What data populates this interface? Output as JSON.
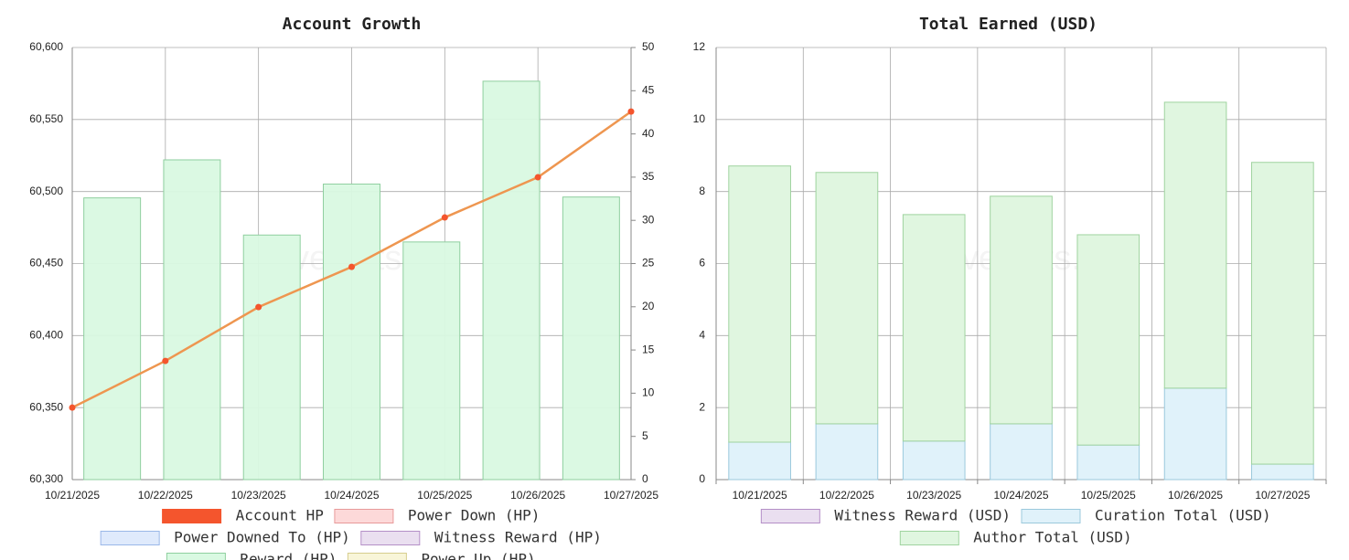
{
  "chart_data": [
    {
      "type": "combo",
      "title": "Account Growth",
      "watermark": "hivestats.io",
      "categories": [
        "10/21/2025",
        "10/22/2025",
        "10/23/2025",
        "10/24/2025",
        "10/25/2025",
        "10/26/2025",
        "10/27/2025"
      ],
      "ylim": [
        60300,
        60600
      ],
      "yticks": [
        {
          "value": 60300,
          "label": "60,300"
        },
        {
          "value": 60350,
          "label": "60,350"
        },
        {
          "value": 60400,
          "label": "60,400"
        },
        {
          "value": 60450,
          "label": "60,450"
        },
        {
          "value": 60500,
          "label": "60,500"
        },
        {
          "value": 60550,
          "label": "60,550"
        },
        {
          "value": 60600,
          "label": "60,600"
        }
      ],
      "y2lim": [
        0,
        50
      ],
      "y2ticks": [
        0,
        5,
        10,
        15,
        20,
        25,
        30,
        35,
        40,
        45,
        50
      ],
      "grid": true,
      "series": [
        {
          "name": "Account HP",
          "kind": "line",
          "color": "#f4552d",
          "line_color": "#ee9650",
          "values": [
            60350,
            60382.4,
            60419.8,
            60447.7,
            60482,
            60509.9,
            60555.5
          ]
        },
        {
          "name": "Power Down (HP)",
          "kind": "bar",
          "axis": "y2",
          "color": "#fdd9d9",
          "stroke": "#e89a9a",
          "values": [
            null,
            null,
            null,
            null,
            null,
            null,
            null
          ]
        },
        {
          "name": "Power Downed To (HP)",
          "kind": "bar",
          "axis": "y2",
          "color": "#dfeafc",
          "stroke": "#9ab7e8",
          "values": [
            null,
            null,
            null,
            null,
            null,
            null,
            null
          ]
        },
        {
          "name": "Witness Reward (HP)",
          "kind": "bar",
          "axis": "y2",
          "color": "#eadff0",
          "stroke": "#b48fc7",
          "values": [
            null,
            null,
            null,
            null,
            null,
            null,
            null
          ]
        },
        {
          "name": "Reward (HP)",
          "kind": "bar",
          "axis": "y2",
          "color": "#d9f9e2",
          "stroke": "#8fcf9f",
          "values": [
            32.6,
            37.0,
            28.3,
            34.2,
            27.5,
            46.1,
            32.7
          ]
        },
        {
          "name": "Power Up (HP)",
          "kind": "bar",
          "axis": "y2",
          "color": "#f8f5d8",
          "stroke": "#d6cd8e",
          "values": [
            null,
            null,
            null,
            null,
            null,
            null,
            null
          ]
        }
      ]
    },
    {
      "type": "stacked_bar",
      "title": "Total Earned (USD)",
      "watermark": "hivestats.io",
      "categories": [
        "10/21/2025",
        "10/22/2025",
        "10/23/2025",
        "10/24/2025",
        "10/25/2025",
        "10/26/2025",
        "10/27/2025"
      ],
      "ylim": [
        0,
        12
      ],
      "yticks": [
        0,
        2,
        4,
        6,
        8,
        10,
        12
      ],
      "grid": true,
      "series": [
        {
          "name": "Witness Reward (USD)",
          "color": "#eadff0",
          "stroke": "#b48fc7",
          "values": [
            null,
            null,
            null,
            null,
            null,
            null,
            null
          ]
        },
        {
          "name": "Curation Total (USD)",
          "color": "#e0f2fa",
          "stroke": "#9bc9dc",
          "values": [
            1.04,
            1.55,
            1.07,
            1.55,
            0.96,
            2.54,
            0.43
          ]
        },
        {
          "name": "Author Total (USD)",
          "color": "#e0f6e0",
          "stroke": "#9fd39f",
          "values": [
            7.67,
            6.98,
            6.29,
            6.32,
            5.84,
            7.94,
            8.38
          ]
        }
      ]
    }
  ]
}
